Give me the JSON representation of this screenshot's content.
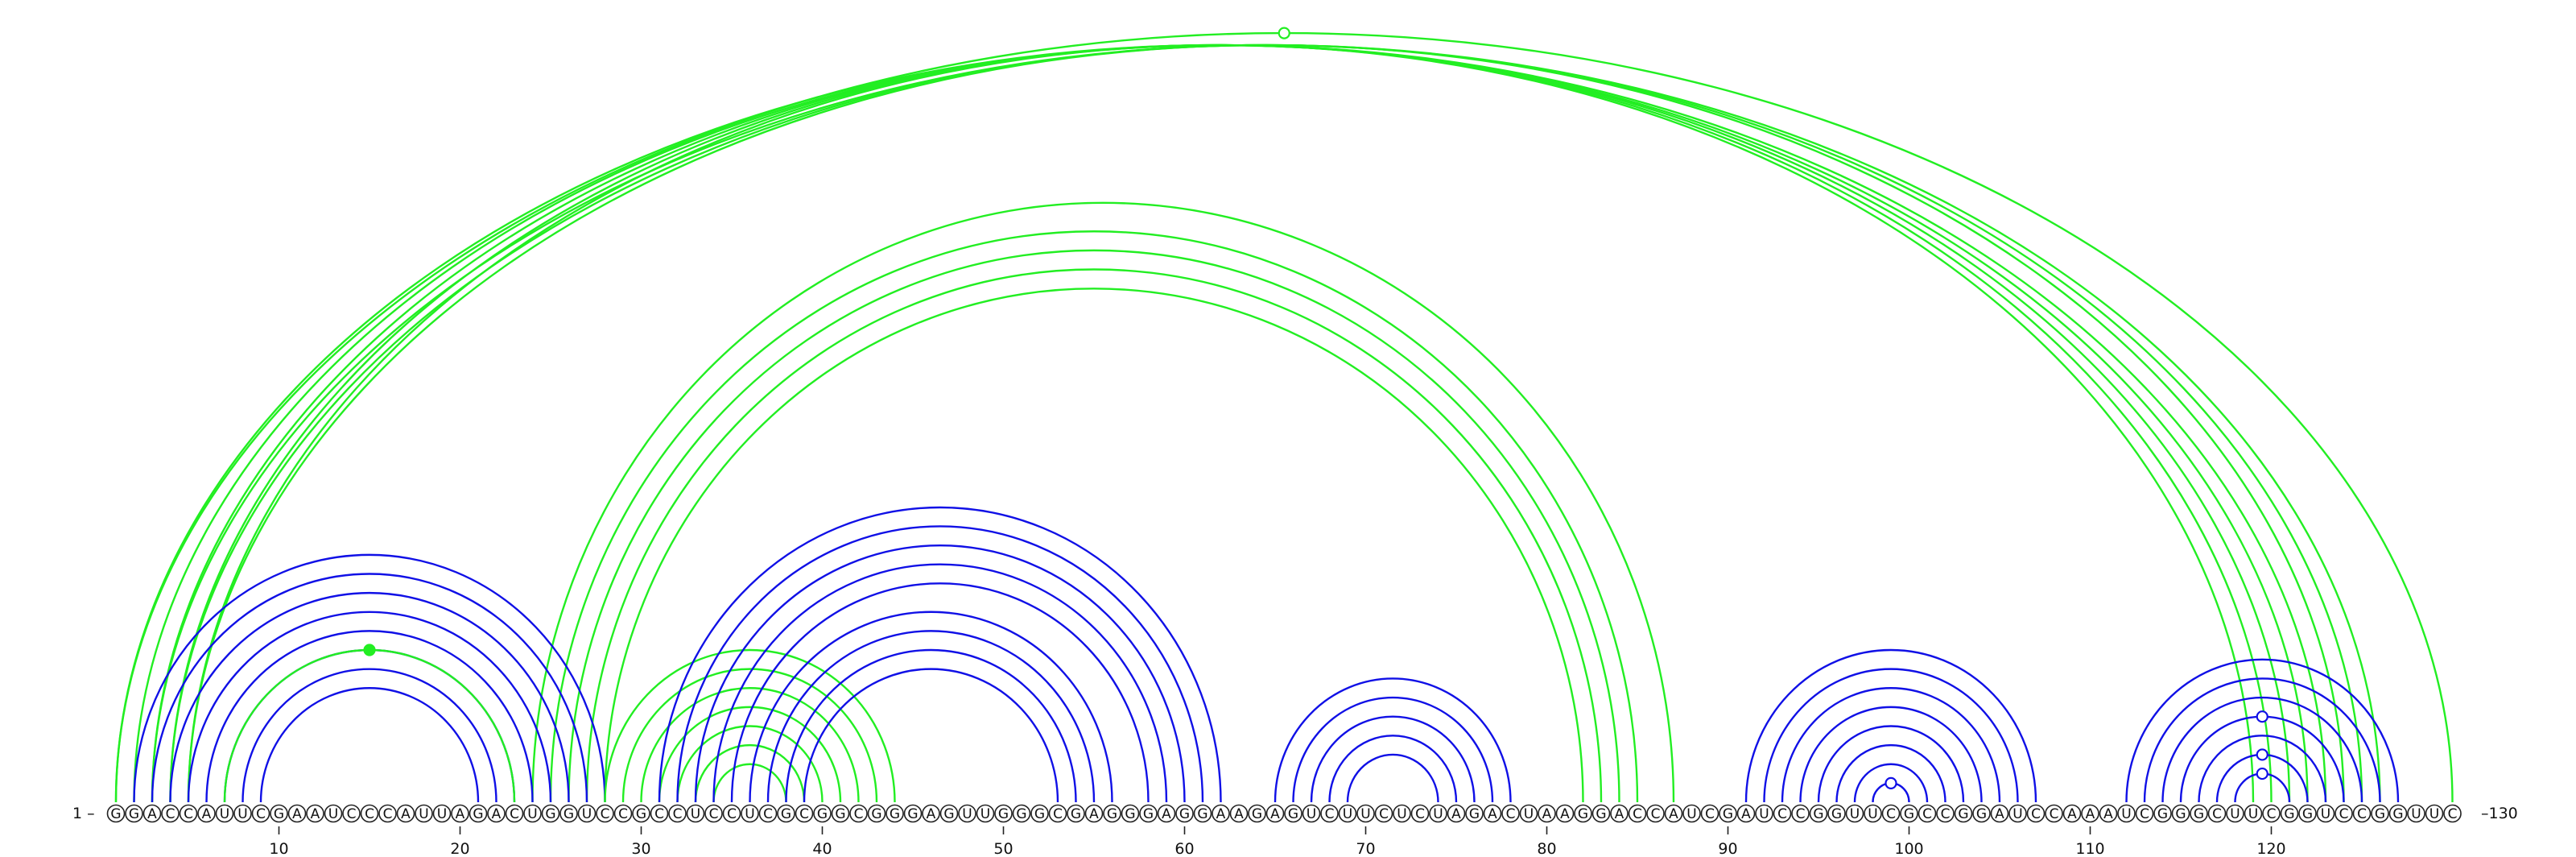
{
  "sequence": "GGACCAUUCGAAUCCCAUUAGACUGGUCCGCCUCCUCGCGGCGGGAGUUGGGCGAGGGAGGAAGAGUCUUCUCUAGACUAAGGACCAUCGAUCCGGUUCGCCGGAUCCAAAUCGGGCUUCGGUCCGGUUC",
  "labels": {
    "start": "1 –",
    "end": "–130"
  },
  "ticks": [
    10,
    20,
    30,
    40,
    50,
    60,
    70,
    80,
    90,
    100,
    110,
    120
  ],
  "colors": {
    "blue": "#1010e6",
    "green": "#22ee22"
  },
  "helices": [
    {
      "color": "green",
      "pairs": [
        [
          1,
          123
        ],
        [
          2,
          122
        ],
        [
          3,
          121
        ],
        [
          4,
          120
        ],
        [
          5,
          119
        ]
      ]
    },
    {
      "color": "green",
      "pairs": [
        [
          1,
          130
        ],
        [
          3,
          126
        ],
        [
          4,
          125
        ],
        [
          5,
          124
        ]
      ]
    },
    {
      "color": "green",
      "pairs": [
        [
          24,
          87
        ],
        [
          25,
          85
        ],
        [
          26,
          84
        ],
        [
          27,
          83
        ],
        [
          28,
          82
        ]
      ]
    },
    {
      "color": "blue",
      "pairs": [
        [
          2,
          28
        ],
        [
          3,
          27
        ],
        [
          4,
          26
        ],
        [
          5,
          25
        ],
        [
          6,
          24
        ],
        [
          7,
          23
        ],
        [
          8,
          22
        ],
        [
          9,
          21
        ]
      ]
    },
    {
      "color": "green",
      "pairs": [
        [
          7,
          23
        ]
      ]
    },
    {
      "color": "green",
      "pairs": [
        [
          28,
          44
        ],
        [
          29,
          43
        ],
        [
          30,
          42
        ],
        [
          31,
          41
        ],
        [
          32,
          40
        ],
        [
          33,
          39
        ],
        [
          34,
          38
        ]
      ]
    },
    {
      "color": "blue",
      "pairs": [
        [
          31,
          62
        ],
        [
          32,
          61
        ],
        [
          33,
          60
        ],
        [
          34,
          59
        ],
        [
          35,
          58
        ],
        [
          36,
          56
        ],
        [
          37,
          55
        ],
        [
          38,
          54
        ],
        [
          39,
          53
        ]
      ]
    },
    {
      "color": "blue",
      "pairs": [
        [
          65,
          78
        ],
        [
          66,
          77
        ],
        [
          67,
          76
        ],
        [
          68,
          75
        ],
        [
          69,
          74
        ]
      ]
    },
    {
      "color": "blue",
      "pairs": [
        [
          91,
          107
        ],
        [
          92,
          106
        ],
        [
          93,
          105
        ],
        [
          94,
          104
        ],
        [
          95,
          103
        ],
        [
          96,
          102
        ],
        [
          97,
          101
        ],
        [
          98,
          100
        ]
      ]
    },
    {
      "color": "blue",
      "pairs": [
        [
          112,
          127
        ],
        [
          113,
          126
        ],
        [
          114,
          125
        ],
        [
          115,
          124
        ],
        [
          116,
          123
        ],
        [
          117,
          122
        ],
        [
          118,
          121
        ]
      ]
    }
  ],
  "markers": [
    {
      "pair": [
        1,
        130
      ],
      "style": "open",
      "color": "green"
    },
    {
      "pair": [
        7,
        23
      ],
      "style": "filled",
      "color": "green"
    },
    {
      "pair": [
        98,
        100
      ],
      "style": "open",
      "color": "blue"
    },
    {
      "pair": [
        115,
        124
      ],
      "style": "open",
      "color": "blue"
    },
    {
      "pair": [
        117,
        122
      ],
      "style": "open",
      "color": "blue"
    },
    {
      "pair": [
        118,
        121
      ],
      "style": "open",
      "color": "blue"
    }
  ]
}
